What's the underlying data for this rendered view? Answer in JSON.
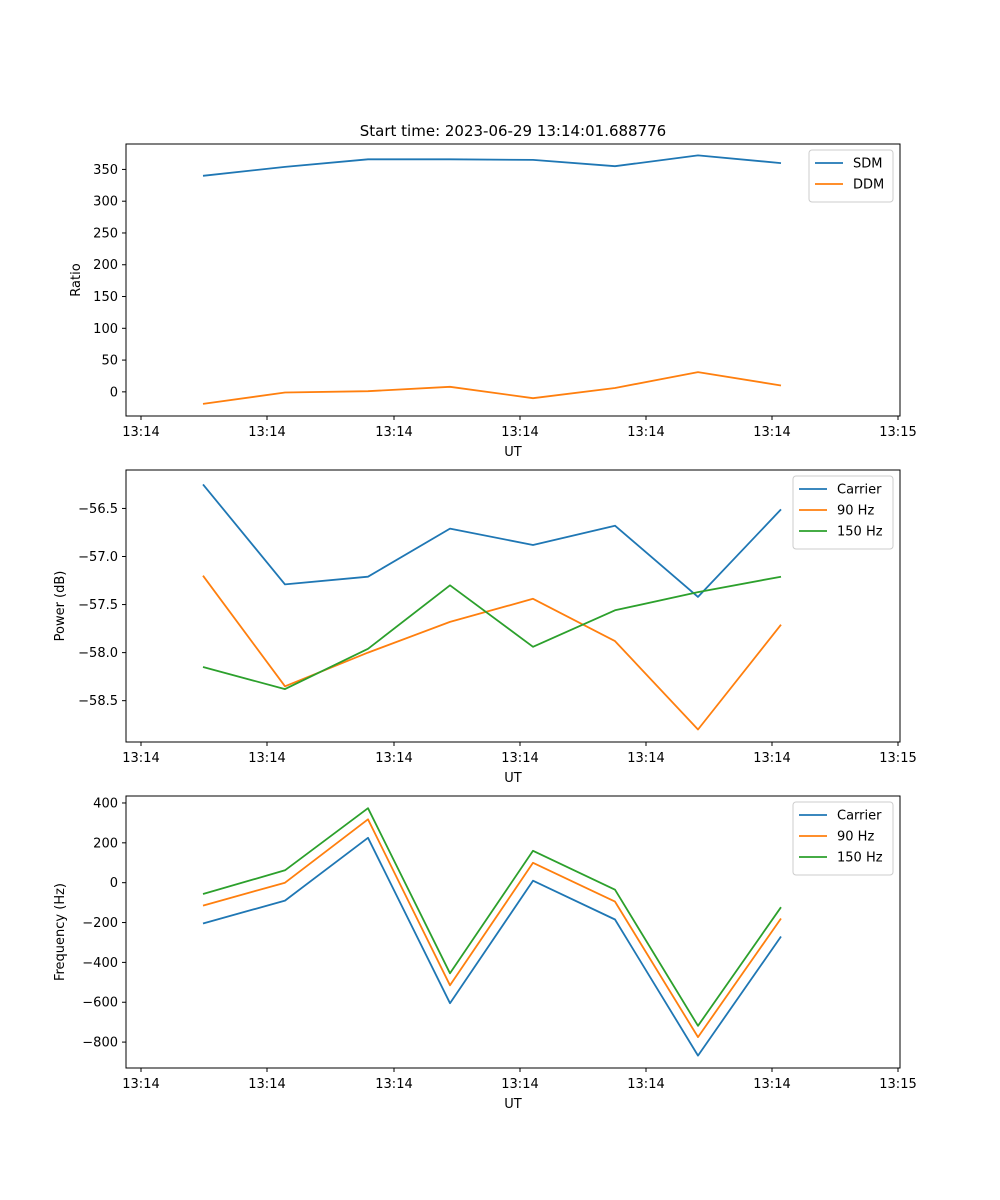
{
  "chart_data": [
    {
      "type": "line",
      "title": "Start time: 2023-06-29 13:14:01.688776",
      "xlabel": "UT",
      "ylabel": "Ratio",
      "xticks": [
        "13:14",
        "13:14",
        "13:14",
        "13:14",
        "13:14",
        "13:14",
        "13:15"
      ],
      "yticks": [
        0,
        50,
        100,
        150,
        200,
        250,
        300,
        350
      ],
      "ylim": [
        -38,
        390
      ],
      "grid": false,
      "legend_position": "top-right",
      "series": [
        {
          "name": "SDM",
          "color": "#1f77b4",
          "values": [
            340,
            354,
            366,
            366,
            365,
            355,
            372,
            360
          ]
        },
        {
          "name": "DDM",
          "color": "#ff7f0e",
          "values": [
            -19,
            -1,
            1,
            8,
            -10,
            6,
            31,
            10
          ]
        }
      ]
    },
    {
      "type": "line",
      "title": "",
      "xlabel": "UT",
      "ylabel": "Power (dB)",
      "xticks": [
        "13:14",
        "13:14",
        "13:14",
        "13:14",
        "13:14",
        "13:14",
        "13:15"
      ],
      "yticks": [
        "−56.5",
        "−57.0",
        "−57.5",
        "−58.0",
        "−58.5"
      ],
      "ylim": [
        -58.93,
        -56.1
      ],
      "grid": false,
      "legend_position": "top-right",
      "series": [
        {
          "name": "Carrier",
          "color": "#1f77b4",
          "values": [
            -56.25,
            -57.29,
            -57.21,
            -56.71,
            -56.88,
            -56.68,
            -57.42,
            -56.51
          ]
        },
        {
          "name": "90 Hz",
          "color": "#ff7f0e",
          "values": [
            -57.2,
            -58.35,
            -58.0,
            -57.68,
            -57.44,
            -57.88,
            -58.8,
            -57.71
          ]
        },
        {
          "name": "150 Hz",
          "color": "#2ca02c",
          "values": [
            -58.15,
            -58.38,
            -57.96,
            -57.3,
            -57.94,
            -57.56,
            -57.37,
            -57.21
          ]
        }
      ]
    },
    {
      "type": "line",
      "title": "",
      "xlabel": "UT",
      "ylabel": "Frequency (Hz)",
      "xticks": [
        "13:14",
        "13:14",
        "13:14",
        "13:14",
        "13:14",
        "13:14",
        "13:15"
      ],
      "yticks": [
        "400",
        "200",
        "0",
        "−200",
        "−400",
        "−600",
        "−800"
      ],
      "ylim": [
        -930,
        435
      ],
      "grid": false,
      "legend_position": "top-right",
      "series": [
        {
          "name": "Carrier",
          "color": "#1f77b4",
          "values": [
            -205,
            -90,
            225,
            -605,
            10,
            -185,
            -868,
            -270
          ]
        },
        {
          "name": "90 Hz",
          "color": "#ff7f0e",
          "values": [
            -115,
            0,
            318,
            -515,
            100,
            -95,
            -775,
            -180
          ]
        },
        {
          "name": "150 Hz",
          "color": "#2ca02c",
          "values": [
            -57,
            62,
            374,
            -455,
            160,
            -35,
            -718,
            -123
          ]
        }
      ]
    }
  ]
}
